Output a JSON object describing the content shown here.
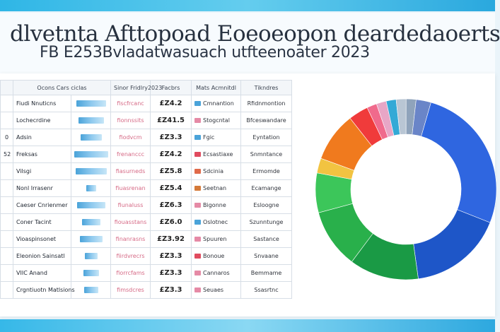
{
  "title": {
    "line1": "dlvetnta Afttopoad Eoeoeopon deardedaoerts",
    "line2": "FB E253Bvladatwasuach utfteenoater 2023"
  },
  "table": {
    "headers": [
      "",
      "Ocons Cars ciclas",
      "Sinor Fridlry2023",
      "Facbrs",
      "Mats Acmnitdl",
      "Tikndres"
    ],
    "rows": [
      [
        "",
        "Fiudi Nnuticns",
        "fiscfrcanc",
        "£Z4.2",
        "Cmnantion",
        "Rfidnmontion"
      ],
      [
        "",
        "Lochecrdine",
        "fionnssits",
        "£Z41.5",
        "Stogcntal",
        "Bfceswandare"
      ],
      [
        "0",
        "Adsin",
        "fiodvcm",
        "£Z3.3",
        "Fgic",
        "Eyntation"
      ],
      [
        "52",
        "Freksas",
        "frenanccc",
        "£Z4.2",
        "Ecsastiaxe",
        "Snmntance"
      ],
      [
        "",
        "Vilsgi",
        "fiasurneds",
        "£Z5.8",
        "Sdcinia",
        "Ermomde"
      ],
      [
        "",
        "Nonl Irrasenr",
        "fiuasrenan",
        "£Z5.4",
        "Seetnan",
        "Ecamange"
      ],
      [
        "",
        "Caeser Cnrienmer",
        "fiunaluss",
        "£Z6.3",
        "Bigonne",
        "Esloogne"
      ],
      [
        "",
        "Coner Tacint",
        "fiouasstans",
        "£Z6.0",
        "Oslotnec",
        "Szunntunge"
      ],
      [
        "",
        "Vioaspinsonet",
        "finanrasns",
        "£Z3.92",
        "Spuuren",
        "Sastance"
      ],
      [
        "",
        "Eleonion Sainsatl",
        "fiirdvrecrs",
        "£Z3.3",
        "Bonoue",
        "Snvaane"
      ],
      [
        "",
        "VIIC Anand",
        "fiorrcfams",
        "£Z3.3",
        "Cannaros",
        "Bemmame"
      ],
      [
        "",
        "Crgntiuotn Matlsions",
        "fimsdcres",
        "£Z3.3",
        "Seuaes",
        "Ssasrtnc"
      ]
    ]
  },
  "chart_data": {
    "type": "pie",
    "donut": true,
    "slices": [
      {
        "value": 30,
        "color": "#2f66e0"
      },
      {
        "value": 19,
        "color": "#1e56c8"
      },
      {
        "value": 14,
        "color": "#1a9a45"
      },
      {
        "value": 12,
        "color": "#29b04b"
      },
      {
        "value": 8,
        "color": "#3cc65a"
      },
      {
        "value": 3,
        "color": "#f2c341"
      },
      {
        "value": 10,
        "color": "#f07a1e"
      },
      {
        "value": 4,
        "color": "#f03b3b"
      },
      {
        "value": 2,
        "color": "#f06a8c"
      },
      {
        "value": 2,
        "color": "#e8a6c6"
      },
      {
        "value": 2,
        "color": "#33a9d6"
      },
      {
        "value": 2,
        "color": "#b9c6d4"
      },
      {
        "value": 2,
        "color": "#8fa3bb"
      },
      {
        "value": 3,
        "color": "#6a85c8"
      }
    ]
  },
  "marks": [
    {
      "color": "#4aa3d9"
    },
    {
      "color": "#e58aa6"
    },
    {
      "color": "#4aa3d9"
    },
    {
      "color": "#e04b5f"
    },
    {
      "color": "#e06a4a"
    },
    {
      "color": "#d47a3a"
    },
    {
      "color": "#e58aa6"
    },
    {
      "color": "#4aa3d9"
    },
    {
      "color": "#e58aa6"
    },
    {
      "color": "#e04b5f"
    },
    {
      "color": "#e58aa6"
    },
    {
      "color": "#e58aa6"
    }
  ]
}
